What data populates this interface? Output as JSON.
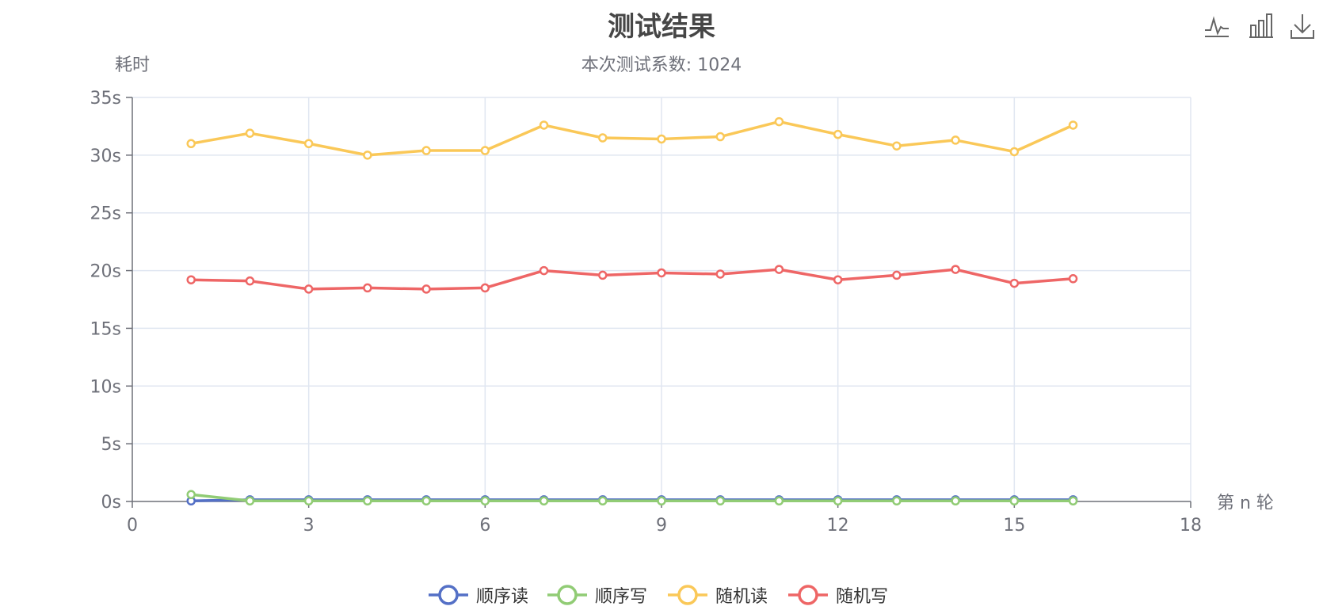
{
  "chart_data": {
    "type": "line",
    "title": "测试结果",
    "subtitle": "本次测试系数: 1024",
    "xlabel": "第 n 轮",
    "ylabel": "耗时",
    "xlim": [
      0,
      18
    ],
    "ylim": [
      0,
      35
    ],
    "x_ticks": [
      0,
      3,
      6,
      9,
      12,
      15,
      18
    ],
    "y_ticks": [
      0,
      5,
      10,
      15,
      20,
      25,
      30,
      35
    ],
    "y_unit": "s",
    "grid": true,
    "legend_position": "bottom-center",
    "x": [
      1,
      2,
      3,
      4,
      5,
      6,
      7,
      8,
      9,
      10,
      11,
      12,
      13,
      14,
      15,
      16
    ],
    "series": [
      {
        "name": "顺序读",
        "color": "#5470c6",
        "values": [
          0.05,
          0.15,
          0.15,
          0.15,
          0.15,
          0.15,
          0.15,
          0.15,
          0.15,
          0.15,
          0.15,
          0.15,
          0.15,
          0.15,
          0.15,
          0.15
        ]
      },
      {
        "name": "顺序写",
        "color": "#91cc75",
        "values": [
          0.6,
          0.05,
          0.05,
          0.05,
          0.05,
          0.05,
          0.05,
          0.05,
          0.05,
          0.05,
          0.05,
          0.05,
          0.05,
          0.05,
          0.05,
          0.05
        ]
      },
      {
        "name": "随机读",
        "color": "#fac858",
        "values": [
          31.0,
          31.9,
          31.0,
          30.0,
          30.4,
          30.4,
          32.6,
          31.5,
          31.4,
          31.6,
          32.9,
          31.8,
          30.8,
          31.3,
          30.3,
          32.6
        ]
      },
      {
        "name": "随机写",
        "color": "#ee6666",
        "values": [
          19.2,
          19.1,
          18.4,
          18.5,
          18.4,
          18.5,
          20.0,
          19.6,
          19.8,
          19.7,
          20.1,
          19.2,
          19.6,
          20.1,
          18.9,
          19.3
        ]
      }
    ]
  },
  "toolbox": {
    "items": [
      {
        "name": "line-icon"
      },
      {
        "name": "bar-icon"
      },
      {
        "name": "download-icon"
      }
    ]
  },
  "colors": {
    "grid": "#e0e6f1",
    "axis": "#6e7079"
  }
}
